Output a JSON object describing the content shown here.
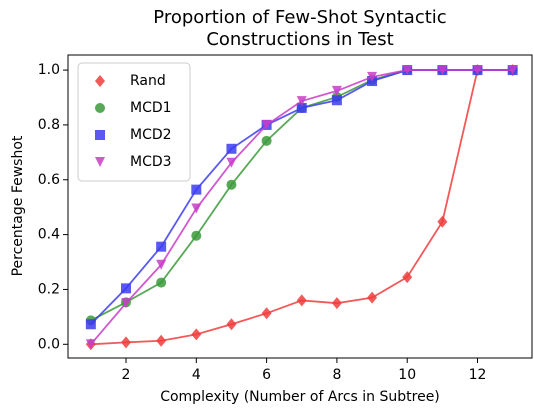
{
  "chart_data": {
    "type": "line",
    "title": [
      "Proportion of Few-Shot Syntactic",
      "Constructions in Test"
    ],
    "xlabel": "Complexity (Number of Arcs in Subtree)",
    "ylabel": "Percentage Fewshot",
    "x": [
      1,
      2,
      3,
      4,
      5,
      6,
      7,
      8,
      9,
      10,
      11,
      12,
      13
    ],
    "series": [
      {
        "name": "Rand",
        "color": "#f03c3c",
        "marker": "diamond",
        "values": [
          0.0,
          0.007,
          0.013,
          0.036,
          0.073,
          0.113,
          0.16,
          0.15,
          0.17,
          0.245,
          0.447,
          1.0,
          1.0
        ]
      },
      {
        "name": "MCD1",
        "color": "#3a9a3a",
        "marker": "circle",
        "values": [
          0.087,
          0.153,
          0.225,
          0.396,
          0.582,
          0.742,
          0.862,
          0.902,
          0.964,
          1.0,
          1.0,
          1.0,
          1.0
        ]
      },
      {
        "name": "MCD2",
        "color": "#3c3cf0",
        "marker": "square",
        "values": [
          0.073,
          0.204,
          0.356,
          0.564,
          0.713,
          0.8,
          0.862,
          0.89,
          0.96,
          1.0,
          1.0,
          1.0,
          1.0
        ]
      },
      {
        "name": "MCD3",
        "color": "#c83cc8",
        "marker": "triangle-down",
        "values": [
          0.0,
          0.15,
          0.29,
          0.495,
          0.662,
          0.8,
          0.887,
          0.924,
          0.975,
          1.0,
          1.0,
          1.0,
          1.0
        ]
      }
    ],
    "xlim": [
      0.35,
      13.55
    ],
    "xticks": [
      2,
      4,
      6,
      8,
      10,
      12
    ],
    "ylim": [
      -0.05,
      1.055
    ],
    "yticks": [
      {
        "value": 0,
        "label": "0.0"
      },
      {
        "value": 0.2,
        "label": "0.2"
      },
      {
        "value": 0.4,
        "label": "0.4"
      },
      {
        "value": 0.6,
        "label": "0.6"
      },
      {
        "value": 0.8,
        "label": "0.8"
      },
      {
        "value": 1,
        "label": "1.0"
      }
    ],
    "legend": "upper left"
  }
}
